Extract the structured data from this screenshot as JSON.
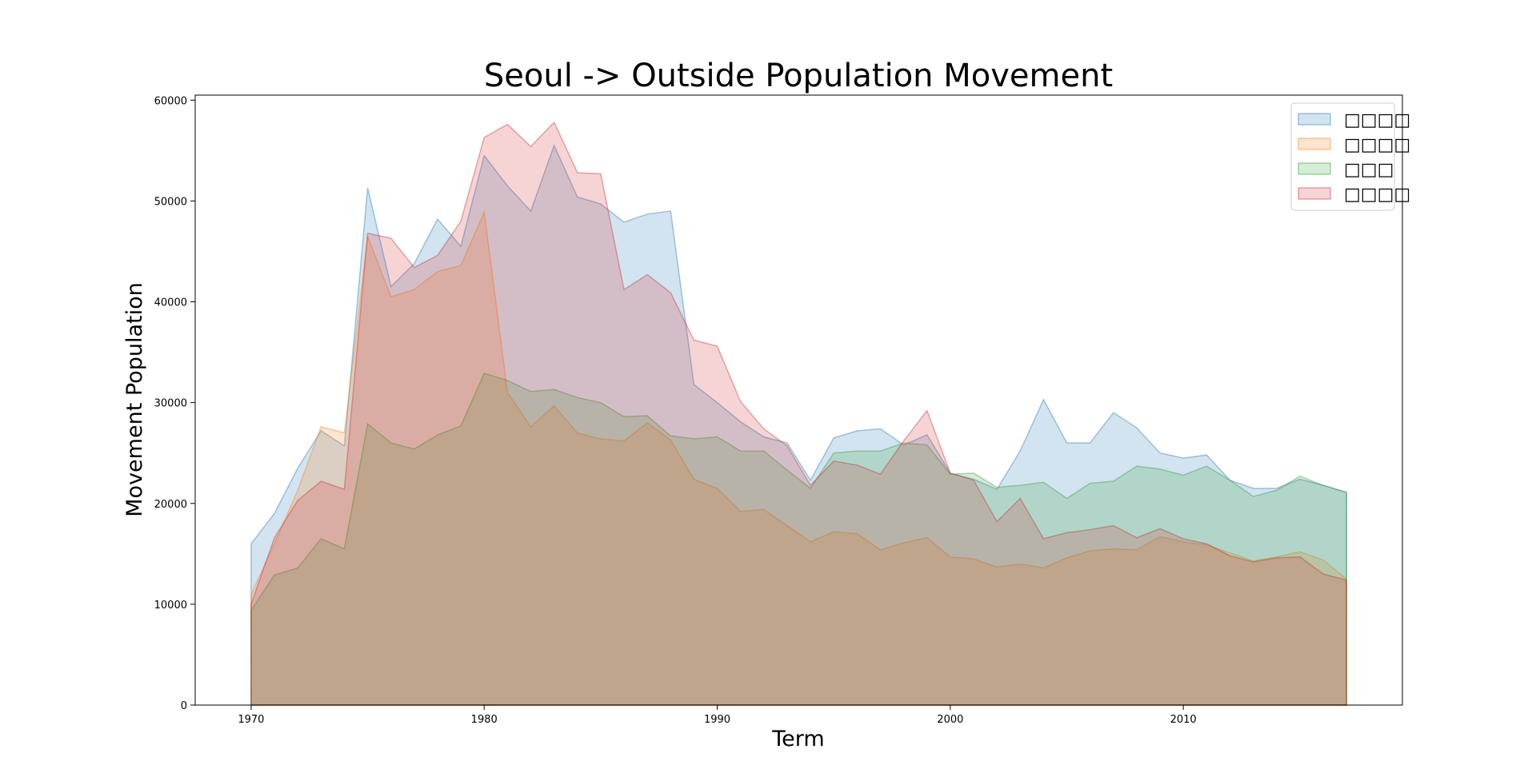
{
  "chart_data": {
    "type": "area",
    "title": "Seoul -> Outside Population Movement",
    "xlabel": "Term",
    "ylabel": "Movement Population",
    "xlim": [
      1967.6,
      2019.4
    ],
    "ylim": [
      0,
      60500
    ],
    "xticks": [
      1970,
      1980,
      1990,
      2000,
      2010
    ],
    "yticks": [
      0,
      10000,
      20000,
      30000,
      40000,
      50000,
      60000
    ],
    "legend_position": "top-right",
    "grid": false,
    "x": [
      1970,
      1971,
      1972,
      1973,
      1974,
      1975,
      1976,
      1977,
      1978,
      1979,
      1980,
      1981,
      1982,
      1983,
      1984,
      1985,
      1986,
      1987,
      1988,
      1989,
      1990,
      1991,
      1992,
      1993,
      1994,
      1995,
      1996,
      1997,
      1998,
      1999,
      2000,
      2001,
      2002,
      2003,
      2004,
      2005,
      2006,
      2007,
      2008,
      2009,
      2010,
      2011,
      2012,
      2013,
      2014,
      2015,
      2016,
      2017
    ],
    "series": [
      {
        "name": "□□□□",
        "color": "#1f77b4",
        "values": [
          16000,
          19000,
          23500,
          27200,
          25700,
          51300,
          41500,
          43800,
          48200,
          45500,
          54500,
          51500,
          49000,
          55500,
          50400,
          49700,
          47900,
          48700,
          49000,
          31800,
          30000,
          28100,
          26600,
          26000,
          22300,
          26500,
          27200,
          27400,
          25800,
          26800,
          23000,
          22400,
          21400,
          25200,
          30300,
          26000,
          26000,
          29000,
          27500,
          25000,
          24500,
          24800,
          22300,
          21500,
          21500,
          22400,
          21800,
          21100
        ]
      },
      {
        "name": "□□□□",
        "color": "#ff7f0e",
        "values": [
          11000,
          16000,
          21300,
          27600,
          27000,
          46500,
          40500,
          41200,
          43000,
          43600,
          48900,
          31000,
          27600,
          29700,
          27000,
          26400,
          26200,
          28000,
          26300,
          22400,
          21500,
          19200,
          19400,
          17800,
          16200,
          17200,
          17000,
          15400,
          16100,
          16600,
          14700,
          14500,
          13700,
          14000,
          13600,
          14600,
          15300,
          15500,
          15400,
          16700,
          16200,
          15900,
          15100,
          14300,
          14700,
          15200,
          14400,
          12500
        ]
      },
      {
        "name": "□□□",
        "color": "#2ca02c",
        "values": [
          9400,
          12900,
          13600,
          16500,
          15500,
          27900,
          26000,
          25400,
          26800,
          27700,
          32900,
          32200,
          31100,
          31300,
          30500,
          30000,
          28600,
          28700,
          26700,
          26400,
          26600,
          25200,
          25200,
          23300,
          21500,
          25000,
          25200,
          25200,
          26000,
          25800,
          22900,
          23000,
          21600,
          21800,
          22100,
          20500,
          22000,
          22200,
          23700,
          23400,
          22800,
          23700,
          22300,
          20700,
          21300,
          22700,
          21800,
          21100
        ]
      },
      {
        "name": "□□□□",
        "color": "#d62728",
        "values": [
          10000,
          16600,
          20300,
          22200,
          21400,
          46800,
          46300,
          43400,
          44600,
          48000,
          56300,
          57600,
          55400,
          57800,
          52800,
          52700,
          41200,
          42700,
          40900,
          36200,
          35600,
          30100,
          27400,
          25700,
          21800,
          24200,
          23800,
          22900,
          26200,
          29200,
          23000,
          22300,
          18200,
          20500,
          16500,
          17100,
          17400,
          17800,
          16600,
          17500,
          16500,
          16000,
          14800,
          14200,
          14600,
          14700,
          13000,
          12400
        ]
      }
    ]
  }
}
